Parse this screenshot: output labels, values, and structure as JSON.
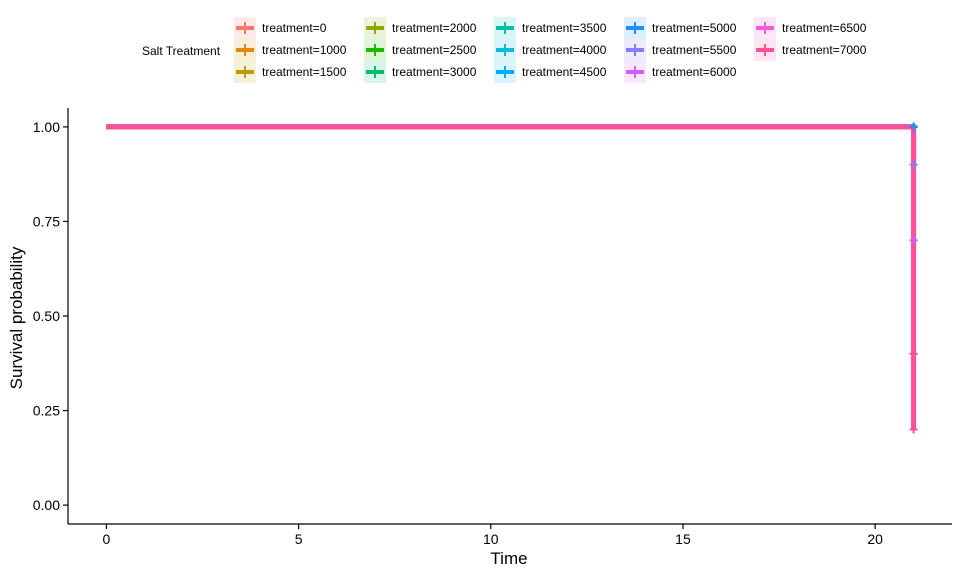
{
  "legend": {
    "title": "Salt Treatment",
    "items": [
      {
        "label": "treatment=0",
        "color": "#F8766D"
      },
      {
        "label": "treatment=1000",
        "color": "#E18A00"
      },
      {
        "label": "treatment=1500",
        "color": "#BE9C00"
      },
      {
        "label": "treatment=2000",
        "color": "#8CAB00"
      },
      {
        "label": "treatment=2500",
        "color": "#24B700"
      },
      {
        "label": "treatment=3000",
        "color": "#00BE70"
      },
      {
        "label": "treatment=3500",
        "color": "#00C1AB"
      },
      {
        "label": "treatment=4000",
        "color": "#00BBDA"
      },
      {
        "label": "treatment=4500",
        "color": "#00ACFC"
      },
      {
        "label": "treatment=5000",
        "color": "#1E90FF"
      },
      {
        "label": "treatment=5500",
        "color": "#8B7CFF"
      },
      {
        "label": "treatment=6000",
        "color": "#D55EFF"
      },
      {
        "label": "treatment=6500",
        "color": "#F25AD8"
      },
      {
        "label": "treatment=7000",
        "color": "#FF4F9A"
      }
    ]
  },
  "chart_data": {
    "type": "line",
    "xlabel": "Time",
    "ylabel": "Survival probability",
    "xlim": [
      -1,
      22
    ],
    "ylim": [
      -0.05,
      1.05
    ],
    "xticks": [
      0,
      5,
      10,
      15,
      20
    ],
    "xtick_labels": [
      "0",
      "5",
      "10",
      "15",
      "20"
    ],
    "yticks": [
      0,
      0.25,
      0.5,
      0.75,
      1
    ],
    "ytick_labels": [
      "0.00",
      "0.25",
      "0.50",
      "0.75",
      "1.00"
    ],
    "grid": false,
    "legend_position": "top",
    "series": [
      {
        "name": "treatment=0",
        "color": "#F8766D",
        "x": [
          0,
          21
        ],
        "y": [
          1,
          1
        ],
        "censor_x": [
          21
        ],
        "censor_y": [
          1
        ]
      },
      {
        "name": "treatment=1000",
        "color": "#E18A00",
        "x": [
          0,
          21
        ],
        "y": [
          1,
          1
        ],
        "censor_x": [
          21
        ],
        "censor_y": [
          1
        ]
      },
      {
        "name": "treatment=1500",
        "color": "#BE9C00",
        "x": [
          0,
          21
        ],
        "y": [
          1,
          1
        ],
        "censor_x": [
          21
        ],
        "censor_y": [
          1
        ]
      },
      {
        "name": "treatment=2000",
        "color": "#8CAB00",
        "x": [
          0,
          21
        ],
        "y": [
          1,
          1
        ],
        "censor_x": [
          21
        ],
        "censor_y": [
          1
        ]
      },
      {
        "name": "treatment=2500",
        "color": "#24B700",
        "x": [
          0,
          21
        ],
        "y": [
          1,
          1
        ],
        "censor_x": [
          21
        ],
        "censor_y": [
          1
        ]
      },
      {
        "name": "treatment=3000",
        "color": "#00BE70",
        "x": [
          0,
          21
        ],
        "y": [
          1,
          1
        ],
        "censor_x": [
          21
        ],
        "censor_y": [
          1
        ]
      },
      {
        "name": "treatment=3500",
        "color": "#00C1AB",
        "x": [
          0,
          21
        ],
        "y": [
          1,
          1
        ],
        "censor_x": [
          21
        ],
        "censor_y": [
          1
        ]
      },
      {
        "name": "treatment=4000",
        "color": "#00BBDA",
        "x": [
          0,
          21
        ],
        "y": [
          1,
          1
        ],
        "censor_x": [
          21
        ],
        "censor_y": [
          1
        ]
      },
      {
        "name": "treatment=4500",
        "color": "#00ACFC",
        "x": [
          0,
          21
        ],
        "y": [
          1,
          1
        ],
        "censor_x": [
          21
        ],
        "censor_y": [
          1
        ]
      },
      {
        "name": "treatment=5000",
        "color": "#1E90FF",
        "x": [
          0,
          21
        ],
        "y": [
          1,
          1
        ],
        "censor_x": [
          21
        ],
        "censor_y": [
          1
        ]
      },
      {
        "name": "treatment=5500",
        "color": "#8B7CFF",
        "x": [
          0,
          21,
          21
        ],
        "y": [
          1,
          1,
          0.9
        ],
        "censor_x": [
          21,
          21
        ],
        "censor_y": [
          0.9,
          0.7
        ]
      },
      {
        "name": "treatment=6000",
        "color": "#D55EFF",
        "x": [
          0,
          21,
          21
        ],
        "y": [
          1,
          1,
          0.7
        ],
        "censor_x": [
          21
        ],
        "censor_y": [
          0.7
        ]
      },
      {
        "name": "treatment=6500",
        "color": "#F25AD8",
        "x": [
          0,
          21,
          21
        ],
        "y": [
          1,
          1,
          0.4
        ],
        "censor_x": [
          21
        ],
        "censor_y": [
          0.4
        ]
      },
      {
        "name": "treatment=7000",
        "color": "#FF4F9A",
        "x": [
          0,
          21,
          21
        ],
        "y": [
          1,
          1,
          0.2
        ],
        "censor_x": [
          21,
          21
        ],
        "censor_y": [
          0.4,
          0.2
        ]
      }
    ]
  }
}
